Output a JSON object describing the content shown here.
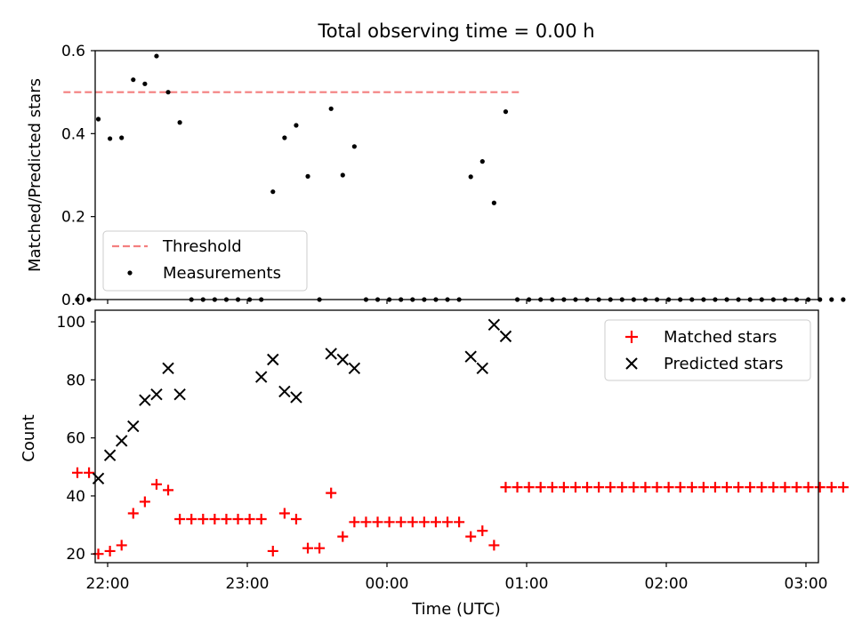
{
  "figure_title": "Total observing time = 0.00 h",
  "colors": {
    "threshold": "#f47f7f",
    "measurement": "#000000",
    "matched": "#ff0000",
    "predicted": "#000000"
  },
  "chart_data": [
    {
      "type": "scatter",
      "ylabel": "Matched/Predicted stars",
      "ylim": [
        0,
        0.6
      ],
      "yticks": [
        {
          "v": 0,
          "label": "0.0"
        },
        {
          "v": 0.2,
          "label": "0.2"
        },
        {
          "v": 0.4,
          "label": "0.4"
        },
        {
          "v": 0.6,
          "label": "0.6"
        }
      ],
      "legend": {
        "placement": "lower-left",
        "entries": [
          "Threshold",
          "Measurements"
        ]
      },
      "threshold": {
        "name": "Threshold",
        "y": 0.5,
        "x_range": [
          "21:41",
          "00:58"
        ],
        "style": "dashed"
      },
      "series": [
        {
          "name": "Measurements",
          "x": [
            "21:47",
            "21:52",
            "21:56",
            "22:01",
            "22:06",
            "22:11",
            "22:16",
            "22:21",
            "22:26",
            "22:31",
            "22:36",
            "22:41",
            "22:46",
            "22:51",
            "22:56",
            "23:01",
            "23:06",
            "23:11",
            "23:16",
            "23:21",
            "23:26",
            "23:31",
            "23:36",
            "23:41",
            "23:46",
            "23:51",
            "23:56",
            "00:01",
            "00:06",
            "00:11",
            "00:16",
            "00:21",
            "00:26",
            "00:31",
            "00:36",
            "00:41",
            "00:46",
            "00:51",
            "00:56",
            "01:01",
            "01:06",
            "01:11",
            "01:16",
            "01:21",
            "01:26",
            "01:31",
            "01:36",
            "01:41",
            "01:46",
            "01:51",
            "01:56",
            "02:01",
            "02:06",
            "02:11",
            "02:16",
            "02:21",
            "02:26",
            "02:31",
            "02:36",
            "02:41",
            "02:46",
            "02:51",
            "02:56",
            "03:01",
            "03:06",
            "03:11",
            "03:16"
          ],
          "y": [
            0,
            0,
            0.435,
            0.388,
            0.39,
            0.53,
            0.52,
            0.587,
            0.5,
            0.427,
            0,
            0,
            0,
            0,
            0,
            0,
            0,
            0.26,
            0.39,
            0.42,
            0.297,
            0,
            0.46,
            0.3,
            0.369,
            0,
            0,
            0,
            0,
            0,
            0,
            0,
            0,
            0,
            0.296,
            0.333,
            0.233,
            0.453,
            0,
            0,
            0,
            0,
            0,
            0,
            0,
            0,
            0,
            0,
            0,
            0,
            0,
            0,
            0,
            0,
            0,
            0,
            0,
            0,
            0,
            0,
            0,
            0,
            0,
            0,
            0,
            0,
            0
          ]
        }
      ]
    },
    {
      "type": "scatter",
      "xlabel": "Time (UTC)",
      "ylabel": "Count",
      "ylim": [
        17,
        104
      ],
      "yticks": [
        {
          "v": 20,
          "label": "20"
        },
        {
          "v": 40,
          "label": "40"
        },
        {
          "v": 60,
          "label": "60"
        },
        {
          "v": 80,
          "label": "80"
        },
        {
          "v": 100,
          "label": "100"
        }
      ],
      "xticks": [
        "22:00",
        "23:00",
        "00:00",
        "01:00",
        "02:00",
        "03:00"
      ],
      "legend": {
        "placement": "upper-right",
        "entries": [
          "Matched stars",
          "Predicted stars"
        ]
      },
      "series": [
        {
          "name": "Matched stars",
          "x": [
            "21:47",
            "21:52",
            "21:56",
            "22:01",
            "22:06",
            "22:11",
            "22:16",
            "22:21",
            "22:26",
            "22:31",
            "22:36",
            "22:41",
            "22:46",
            "22:51",
            "22:56",
            "23:01",
            "23:06",
            "23:11",
            "23:16",
            "23:21",
            "23:26",
            "23:31",
            "23:36",
            "23:41",
            "23:46",
            "23:51",
            "23:56",
            "00:01",
            "00:06",
            "00:11",
            "00:16",
            "00:21",
            "00:26",
            "00:31",
            "00:36",
            "00:41",
            "00:46",
            "00:51",
            "00:56",
            "01:01",
            "01:06",
            "01:11",
            "01:16",
            "01:21",
            "01:26",
            "01:31",
            "01:36",
            "01:41",
            "01:46",
            "01:51",
            "01:56",
            "02:01",
            "02:06",
            "02:11",
            "02:16",
            "02:21",
            "02:26",
            "02:31",
            "02:36",
            "02:41",
            "02:46",
            "02:51",
            "02:56",
            "03:01",
            "03:06",
            "03:11",
            "03:16"
          ],
          "y": [
            48,
            48,
            20,
            21,
            23,
            34,
            38,
            44,
            42,
            32,
            32,
            32,
            32,
            32,
            32,
            32,
            32,
            21,
            34,
            32,
            22,
            22,
            41,
            26,
            31,
            31,
            31,
            31,
            31,
            31,
            31,
            31,
            31,
            31,
            26,
            28,
            23,
            43,
            43,
            43,
            43,
            43,
            43,
            43,
            43,
            43,
            43,
            43,
            43,
            43,
            43,
            43,
            43,
            43,
            43,
            43,
            43,
            43,
            43,
            43,
            43,
            43,
            43,
            43,
            43,
            43,
            43
          ]
        },
        {
          "name": "Predicted stars",
          "x": [
            "21:56",
            "22:01",
            "22:06",
            "22:11",
            "22:16",
            "22:21",
            "22:26",
            "22:31",
            "23:06",
            "23:11",
            "23:16",
            "23:21",
            "23:36",
            "23:41",
            "23:46",
            "00:36",
            "00:41",
            "00:46",
            "00:51"
          ],
          "y": [
            46,
            54,
            59,
            64,
            73,
            75,
            84,
            75,
            81,
            87,
            76,
            74,
            89,
            87,
            84,
            88,
            84,
            99,
            95
          ]
        }
      ]
    }
  ]
}
